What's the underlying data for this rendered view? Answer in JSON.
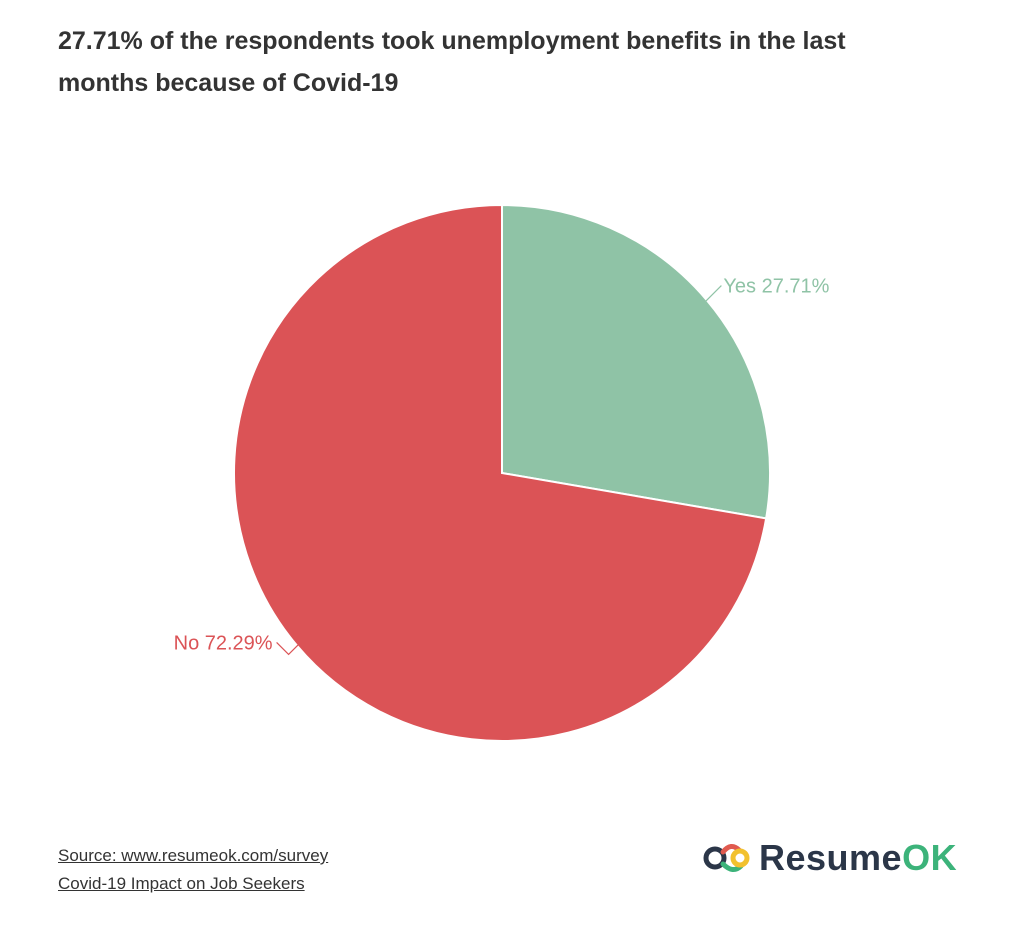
{
  "title": "27.71% of the respondents took unemployment benefits in the last months because of Covid-19",
  "chart_data": {
    "type": "pie",
    "slices": [
      {
        "label": "Yes",
        "value": 27.71,
        "display": "Yes 27.71%",
        "color": "#8fc3a6"
      },
      {
        "label": "No",
        "value": 72.29,
        "display": "No 72.29%",
        "color": "#db5356"
      }
    ]
  },
  "footer": {
    "source": "Source: www.resumeok.com/survey",
    "subtitle": "Covid-19 Impact on Job Seekers"
  },
  "logo": {
    "part1": "Resume",
    "part2": "OK",
    "icon": "link-chain-icon",
    "colors": {
      "dark": "#2b3648",
      "green": "#3cb37a",
      "red": "#e05a4f",
      "yellow": "#f2c12e"
    }
  }
}
